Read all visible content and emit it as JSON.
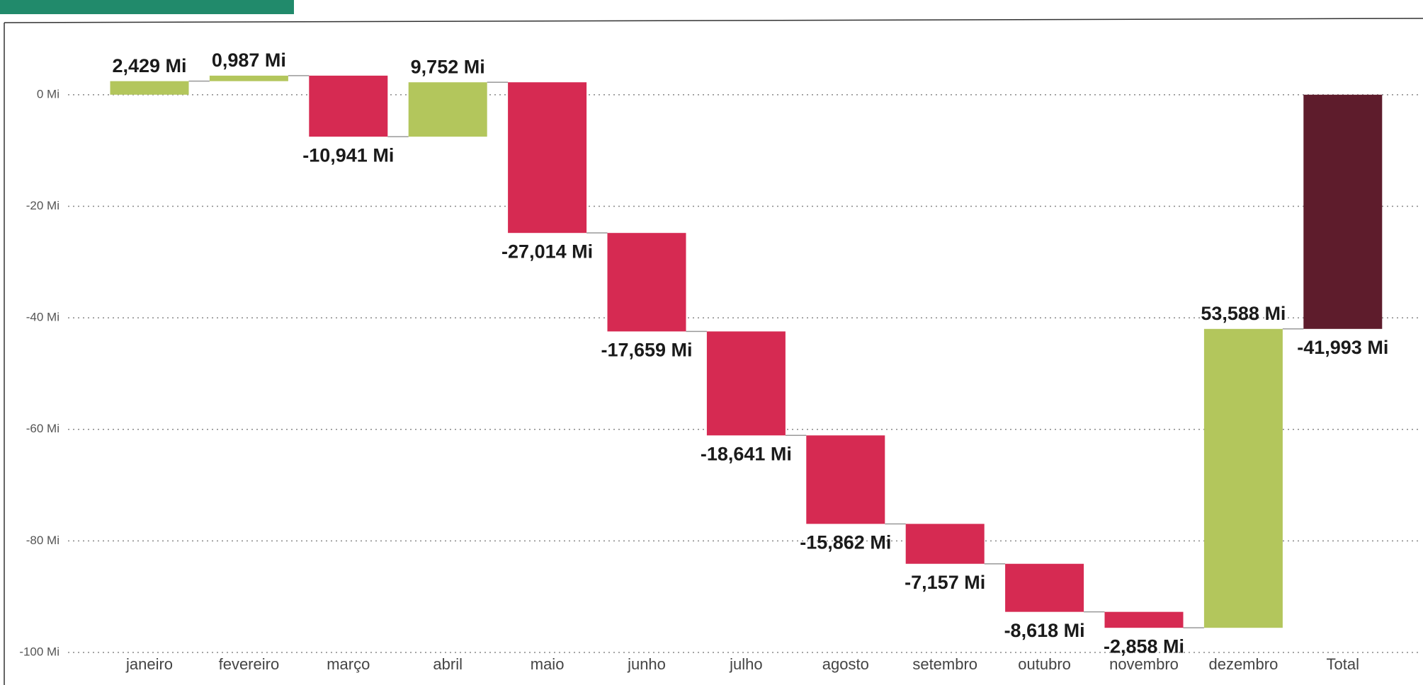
{
  "chart_data": {
    "type": "waterfall",
    "categories": [
      "janeiro",
      "fevereiro",
      "março",
      "abril",
      "maio",
      "junho",
      "julho",
      "agosto",
      "setembro",
      "outubro",
      "novembro",
      "dezembro",
      "Total"
    ],
    "values": [
      2.429,
      0.987,
      -10.941,
      9.752,
      -27.014,
      -17.659,
      -18.641,
      -15.862,
      -7.157,
      -8.618,
      -2.858,
      53.588,
      -41.993
    ],
    "value_labels": [
      "2,429 Mi",
      "0,987 Mi",
      "-10,941 Mi",
      "9,752 Mi",
      "-27,014 Mi",
      "-17,659 Mi",
      "-18,641 Mi",
      "-15,862 Mi",
      "-7,157 Mi",
      "-8,618 Mi",
      "-2,858 Mi",
      "53,588 Mi",
      "-41,993 Mi"
    ],
    "colors": [
      "#b3c65c",
      "#b3c65c",
      "#d62a52",
      "#b3c65c",
      "#d62a52",
      "#d62a52",
      "#d62a52",
      "#d62a52",
      "#d62a52",
      "#d62a52",
      "#d62a52",
      "#b3c65c",
      "#5e1c2c"
    ],
    "show_total": true,
    "ylim": [
      -100,
      10
    ],
    "yticks": [
      {
        "value": 0,
        "label": "0 Mi"
      },
      {
        "value": -20,
        "label": "-20 Mi"
      },
      {
        "value": -40,
        "label": "-40 Mi"
      },
      {
        "value": -60,
        "label": "-60 Mi"
      },
      {
        "value": -80,
        "label": "-80 Mi"
      },
      {
        "value": -100,
        "label": "-100 Mi"
      }
    ],
    "grid": true
  }
}
